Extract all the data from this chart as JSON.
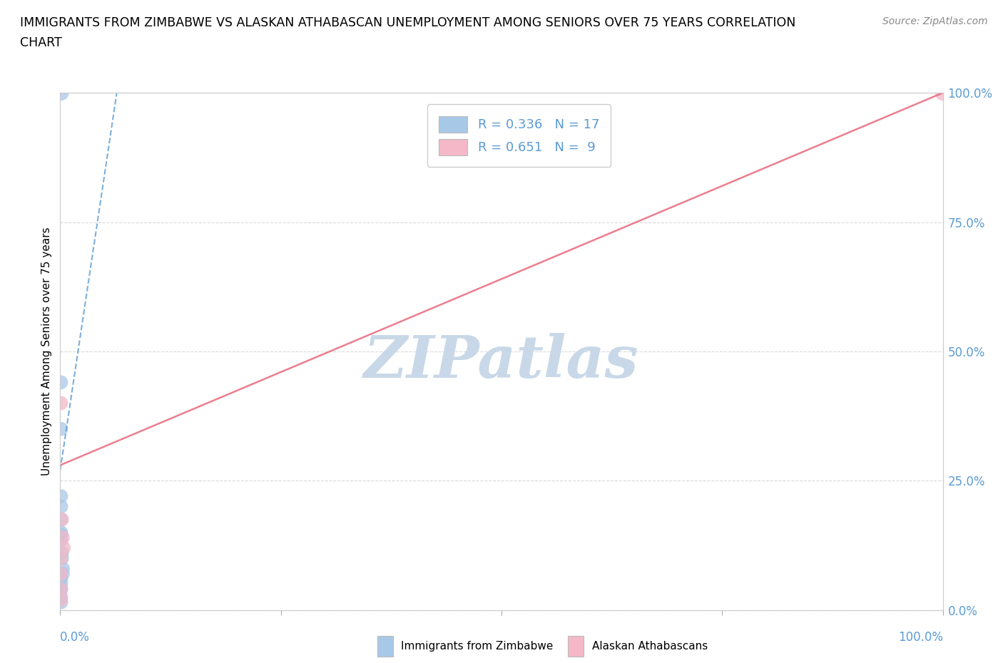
{
  "title_line1": "IMMIGRANTS FROM ZIMBABWE VS ALASKAN ATHABASCAN UNEMPLOYMENT AMONG SENIORS OVER 75 YEARS CORRELATION",
  "title_line2": "CHART",
  "source": "Source: ZipAtlas.com",
  "ylabel": "Unemployment Among Seniors over 75 years",
  "xlabel_blue": "Immigrants from Zimbabwe",
  "xlabel_pink": "Alaskan Athabascans",
  "R_blue": 0.336,
  "N_blue": 17,
  "R_pink": 0.651,
  "N_pink": 9,
  "blue_color": "#a8c8e8",
  "blue_color_line": "#5b9bd5",
  "pink_color": "#f4b8c8",
  "pink_color_line": "#e8687a",
  "blue_scatter_x": [
    0.001,
    0.001,
    0.001,
    0.001,
    0.001,
    0.001,
    0.001,
    0.001,
    0.002,
    0.002,
    0.003,
    0.003,
    0.001,
    0.001,
    0.001,
    0.001,
    0.001
  ],
  "blue_scatter_y": [
    0.44,
    0.35,
    0.22,
    0.2,
    0.175,
    0.15,
    0.145,
    0.135,
    0.11,
    0.1,
    0.08,
    0.07,
    0.06,
    0.05,
    0.04,
    0.025,
    0.015
  ],
  "blue_outlier_x": [
    0.001
  ],
  "blue_outlier_y": [
    1.0
  ],
  "pink_scatter_x": [
    0.001,
    0.002,
    0.003,
    0.004,
    0.001,
    0.001,
    0.001,
    0.001
  ],
  "pink_scatter_y": [
    0.4,
    0.175,
    0.14,
    0.12,
    0.1,
    0.07,
    0.04,
    0.02
  ],
  "pink_outlier_x": [
    1.0
  ],
  "pink_outlier_y": [
    1.0
  ],
  "blue_line_x": [
    0.0,
    0.065
  ],
  "blue_line_y": [
    0.27,
    1.01
  ],
  "pink_line_x": [
    0.0,
    1.0
  ],
  "pink_line_y": [
    0.28,
    1.0
  ],
  "axis_color": "#5b9bd5",
  "grid_color": "#d9d9d9",
  "watermark_color": "#c8d8e8",
  "background_color": "#ffffff",
  "xlim": [
    0.0,
    1.0
  ],
  "ylim": [
    0.0,
    1.0
  ],
  "right_yticks": [
    0.0,
    0.25,
    0.5,
    0.75,
    1.0
  ],
  "right_ytick_labels": [
    "0.0%",
    "25.0%",
    "50.0%",
    "75.0%",
    "100.0%"
  ],
  "xtick_edge_labels": [
    "0.0%",
    "100.0%"
  ]
}
